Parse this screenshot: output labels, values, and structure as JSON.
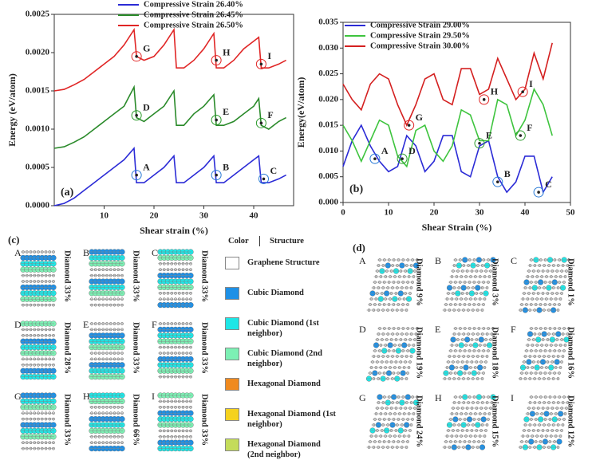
{
  "chart_data": [
    {
      "type": "line",
      "panel": "(a)",
      "xlabel": "Shear strain (%)",
      "ylabel": "Energy (eV/atom)",
      "xlim": [
        0,
        48
      ],
      "xticks": [
        10,
        20,
        30,
        40
      ],
      "ylim": [
        0,
        0.0025
      ],
      "yticks": [
        {
          "value": 0,
          "label": "0.0000"
        },
        {
          "value": 0.0005,
          "label": "0.0005"
        },
        {
          "value": 0.001,
          "label": "0.0010"
        },
        {
          "value": 0.0015,
          "label": "0.0015"
        },
        {
          "value": 0.002,
          "label": "0.0020"
        },
        {
          "value": 0.0025,
          "label": "0.0025"
        }
      ],
      "legend": "top",
      "x": [
        0,
        2,
        4,
        6,
        8,
        10,
        12,
        14,
        16,
        16.5,
        18,
        20,
        22,
        24,
        24.5,
        26,
        28,
        30,
        32,
        32.5,
        34,
        36,
        38,
        40,
        41,
        41.5,
        43,
        45,
        46.5
      ],
      "series": [
        {
          "name": "Compressive Strain  26.40%",
          "color": "#2b2bd6",
          "values": [
            0,
            3e-05,
            0.0001,
            0.0002,
            0.0003,
            0.0004,
            0.0005,
            0.0006,
            0.00075,
            0.0003,
            0.0003,
            0.0004,
            0.0005,
            0.00065,
            0.0003,
            0.0003,
            0.0004,
            0.0005,
            0.00065,
            0.0003,
            0.0003,
            0.0004,
            0.0005,
            0.0006,
            0.00065,
            0.0003,
            0.0003,
            0.00035,
            0.0004
          ]
        },
        {
          "name": "Compressive Strain  26.45%",
          "color": "#2a8a2a",
          "values": [
            0.00075,
            0.00077,
            0.00083,
            0.0009,
            0.001,
            0.0011,
            0.0012,
            0.0013,
            0.00155,
            0.00115,
            0.0011,
            0.0012,
            0.0013,
            0.0015,
            0.00105,
            0.00105,
            0.0012,
            0.0013,
            0.00145,
            0.00105,
            0.00105,
            0.0011,
            0.0012,
            0.0013,
            0.0014,
            0.00105,
            0.001,
            0.0011,
            0.00115
          ]
        },
        {
          "name": "Compressive Strain  26.50%",
          "color": "#e02525",
          "values": [
            0.0015,
            0.00152,
            0.00158,
            0.00165,
            0.00175,
            0.00185,
            0.00195,
            0.0021,
            0.0023,
            0.00195,
            0.0019,
            0.00195,
            0.0021,
            0.0023,
            0.0018,
            0.0018,
            0.0019,
            0.00205,
            0.00225,
            0.0018,
            0.0018,
            0.0019,
            0.00205,
            0.00215,
            0.0022,
            0.0018,
            0.0018,
            0.00185,
            0.0019
          ]
        }
      ],
      "annotations": [
        {
          "text": "A",
          "x": 16.5,
          "y": 0.0004,
          "color": "#2b7bd6"
        },
        {
          "text": "B",
          "x": 32.5,
          "y": 0.0004,
          "color": "#2b7bd6"
        },
        {
          "text": "C",
          "x": 42,
          "y": 0.00035,
          "color": "#2b7bd6"
        },
        {
          "text": "D",
          "x": 16.5,
          "y": 0.00118,
          "color": "#2a9a2a"
        },
        {
          "text": "E",
          "x": 32.5,
          "y": 0.00112,
          "color": "#2a9a2a"
        },
        {
          "text": "F",
          "x": 41.5,
          "y": 0.00108,
          "color": "#2a9a2a"
        },
        {
          "text": "G",
          "x": 16.5,
          "y": 0.00195,
          "color": "#e02525"
        },
        {
          "text": "H",
          "x": 32.5,
          "y": 0.0019,
          "color": "#e02525"
        },
        {
          "text": "I",
          "x": 41.5,
          "y": 0.00185,
          "color": "#e02525"
        }
      ]
    },
    {
      "type": "line",
      "panel": "(b)",
      "xlabel": "Shear Strain (%)",
      "ylabel": "Energy(eV/atom)",
      "xlim": [
        0,
        50
      ],
      "xticks": [
        0,
        10,
        20,
        30,
        40,
        50
      ],
      "ylim": [
        0,
        0.035
      ],
      "yticks": [
        {
          "value": 0,
          "label": "0.000"
        },
        {
          "value": 0.005,
          "label": "0.005"
        },
        {
          "value": 0.01,
          "label": "0.010"
        },
        {
          "value": 0.015,
          "label": "0.015"
        },
        {
          "value": 0.02,
          "label": "0.020"
        },
        {
          "value": 0.025,
          "label": "0.025"
        },
        {
          "value": 0.03,
          "label": "0.030"
        },
        {
          "value": 0.035,
          "label": "0.035"
        }
      ],
      "legend": "top-left",
      "x": [
        0,
        2,
        4,
        6,
        8,
        10,
        12,
        14,
        16,
        18,
        20,
        22,
        24,
        26,
        28,
        30,
        32,
        34,
        36,
        38,
        40,
        42,
        44,
        46
      ],
      "series": [
        {
          "name": "Compressive Strain 29.00%",
          "color": "#2b2bd6",
          "values": [
            0.007,
            0.012,
            0.015,
            0.011,
            0.008,
            0.006,
            0.007,
            0.013,
            0.011,
            0.006,
            0.008,
            0.013,
            0.013,
            0.006,
            0.005,
            0.011,
            0.012,
            0.005,
            0.002,
            0.004,
            0.009,
            0.009,
            0.002,
            0.005
          ]
        },
        {
          "name": "Compressive Strain 29.50%",
          "color": "#3ec43e",
          "values": [
            0.015,
            0.012,
            0.008,
            0.012,
            0.016,
            0.015,
            0.009,
            0.007,
            0.014,
            0.015,
            0.01,
            0.008,
            0.011,
            0.018,
            0.017,
            0.012,
            0.012,
            0.02,
            0.019,
            0.013,
            0.016,
            0.022,
            0.019,
            0.013
          ]
        },
        {
          "name": "Compressive Strain 30.00%",
          "color": "#d42020",
          "values": [
            0.023,
            0.02,
            0.018,
            0.023,
            0.025,
            0.024,
            0.019,
            0.015,
            0.019,
            0.024,
            0.025,
            0.02,
            0.019,
            0.026,
            0.026,
            0.021,
            0.022,
            0.028,
            0.024,
            0.02,
            0.022,
            0.029,
            0.024,
            0.031
          ]
        }
      ],
      "annotations": [
        {
          "text": "A",
          "x": 7,
          "y": 0.0085,
          "color": "#2b7bd6"
        },
        {
          "text": "B",
          "x": 34,
          "y": 0.004,
          "color": "#2b7bd6"
        },
        {
          "text": "C",
          "x": 43,
          "y": 0.002,
          "color": "#2b7bd6"
        },
        {
          "text": "D",
          "x": 13,
          "y": 0.0085,
          "color": "#2a9a2a"
        },
        {
          "text": "E",
          "x": 30,
          "y": 0.0115,
          "color": "#2a9a2a"
        },
        {
          "text": "F",
          "x": 39,
          "y": 0.013,
          "color": "#2a9a2a"
        },
        {
          "text": "G",
          "x": 14.5,
          "y": 0.015,
          "color": "#e02525"
        },
        {
          "text": "H",
          "x": 31,
          "y": 0.02,
          "color": "#e02525"
        },
        {
          "text": "I",
          "x": 39.5,
          "y": 0.0215,
          "color": "#e02525"
        }
      ]
    }
  ],
  "panels": {
    "c": {
      "label": "(c)",
      "items": [
        {
          "letter": "A",
          "text": "Diamond 33%"
        },
        {
          "letter": "B",
          "text": "Diamond 33%"
        },
        {
          "letter": "C",
          "text": "Diamond 33%"
        },
        {
          "letter": "D",
          "text": "Diamond 28%"
        },
        {
          "letter": "E",
          "text": "Diamond 33%"
        },
        {
          "letter": "F",
          "text": "Diamond 33%"
        },
        {
          "letter": "G",
          "text": "Diamond 33%"
        },
        {
          "letter": "H",
          "text": "Diamond 66%"
        },
        {
          "letter": "I",
          "text": "Diamond 33%"
        }
      ]
    },
    "d": {
      "label": "(d)",
      "items": [
        {
          "letter": "A",
          "text": "Diamond 9%"
        },
        {
          "letter": "B",
          "text": "Diamond 3%"
        },
        {
          "letter": "C",
          "text": "Diamond 1%"
        },
        {
          "letter": "D",
          "text": "Diamond 19%"
        },
        {
          "letter": "E",
          "text": "Diamond 18%"
        },
        {
          "letter": "F",
          "text": "Diamond 16%"
        },
        {
          "letter": "G",
          "text": "Diamond 24%"
        },
        {
          "letter": "H",
          "text": "Diamond 15%"
        },
        {
          "letter": "I",
          "text": "Diamond 12%"
        }
      ]
    }
  },
  "structure_legend": {
    "color_header": "Color",
    "structure_header": "Structure",
    "items": [
      {
        "text": "Graphene Structure",
        "color": "#ffffff"
      },
      {
        "text": "Cubic Diamond",
        "color": "#1e90e6"
      },
      {
        "text": "Cubic Diamond (1st neighbor)",
        "color": "#1ee6e6"
      },
      {
        "text": "Cubic Diamond (2nd neighbor)",
        "color": "#7cf0b4"
      },
      {
        "text": "Hexagonal Diamond",
        "color": "#f08a1e"
      },
      {
        "text": "Hexagonal Diamond (1st neighbor)",
        "color": "#f5d21e"
      },
      {
        "text": "Hexagonal Diamond (2nd neighbor)",
        "color": "#c4dc5a"
      }
    ]
  }
}
